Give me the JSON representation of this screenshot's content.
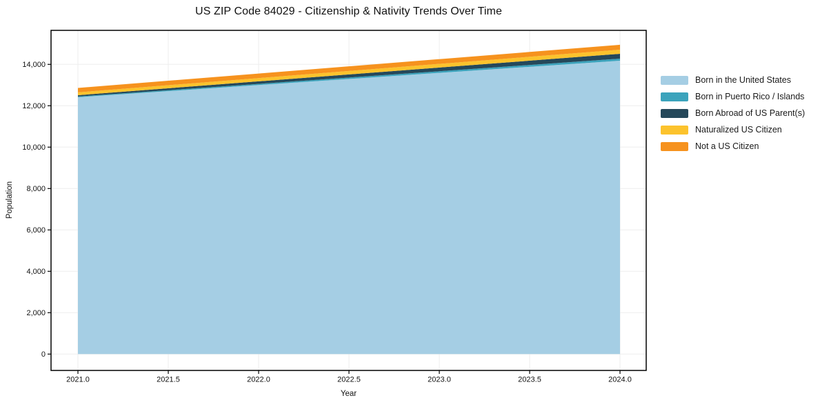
{
  "title": "US ZIP Code 84029 - Citizenship & Nativity Trends Over Time",
  "chart_data": {
    "type": "area",
    "stacked": true,
    "title": "US ZIP Code 84029 - Citizenship & Nativity Trends Over Time",
    "xlabel": "Year",
    "ylabel": "Population",
    "x": [
      2021,
      2022,
      2023,
      2024
    ],
    "series": [
      {
        "name": "Born in the United States",
        "color": "#a5cee4",
        "values": [
          12410,
          13000,
          13590,
          14175
        ]
      },
      {
        "name": "Born in Puerto Rico / Islands",
        "color": "#3ba3bc",
        "values": [
          35,
          57,
          78,
          100
        ]
      },
      {
        "name": "Born Abroad of US Parent(s)",
        "color": "#25485a",
        "values": [
          65,
          122,
          178,
          235
        ]
      },
      {
        "name": "Naturalized US Citizen",
        "color": "#fcc32d",
        "values": [
          135,
          157,
          178,
          200
        ]
      },
      {
        "name": "Not a US Citizen",
        "color": "#f6921e",
        "values": [
          215,
          222,
          228,
          235
        ]
      }
    ],
    "x_ticks": [
      2021.0,
      2021.5,
      2022.0,
      2022.5,
      2023.0,
      2023.5,
      2024.0
    ],
    "x_tick_labels": [
      "2021.0",
      "2021.5",
      "2022.0",
      "2022.5",
      "2023.0",
      "2023.5",
      "2024.0"
    ],
    "y_ticks": [
      0,
      2000,
      4000,
      6000,
      8000,
      10000,
      12000,
      14000
    ],
    "y_tick_labels": [
      "0",
      "2,000",
      "4,000",
      "6,000",
      "8,000",
      "10,000",
      "12,000",
      "14,000"
    ],
    "xlim": [
      2020.85,
      2024.15
    ],
    "ylim": [
      -790,
      15640
    ],
    "grid": true,
    "legend_position": "right",
    "colors": {
      "frame": "#000000",
      "gridline": "#ededed",
      "tick_text": "#111111",
      "background": "#ffffff"
    }
  }
}
